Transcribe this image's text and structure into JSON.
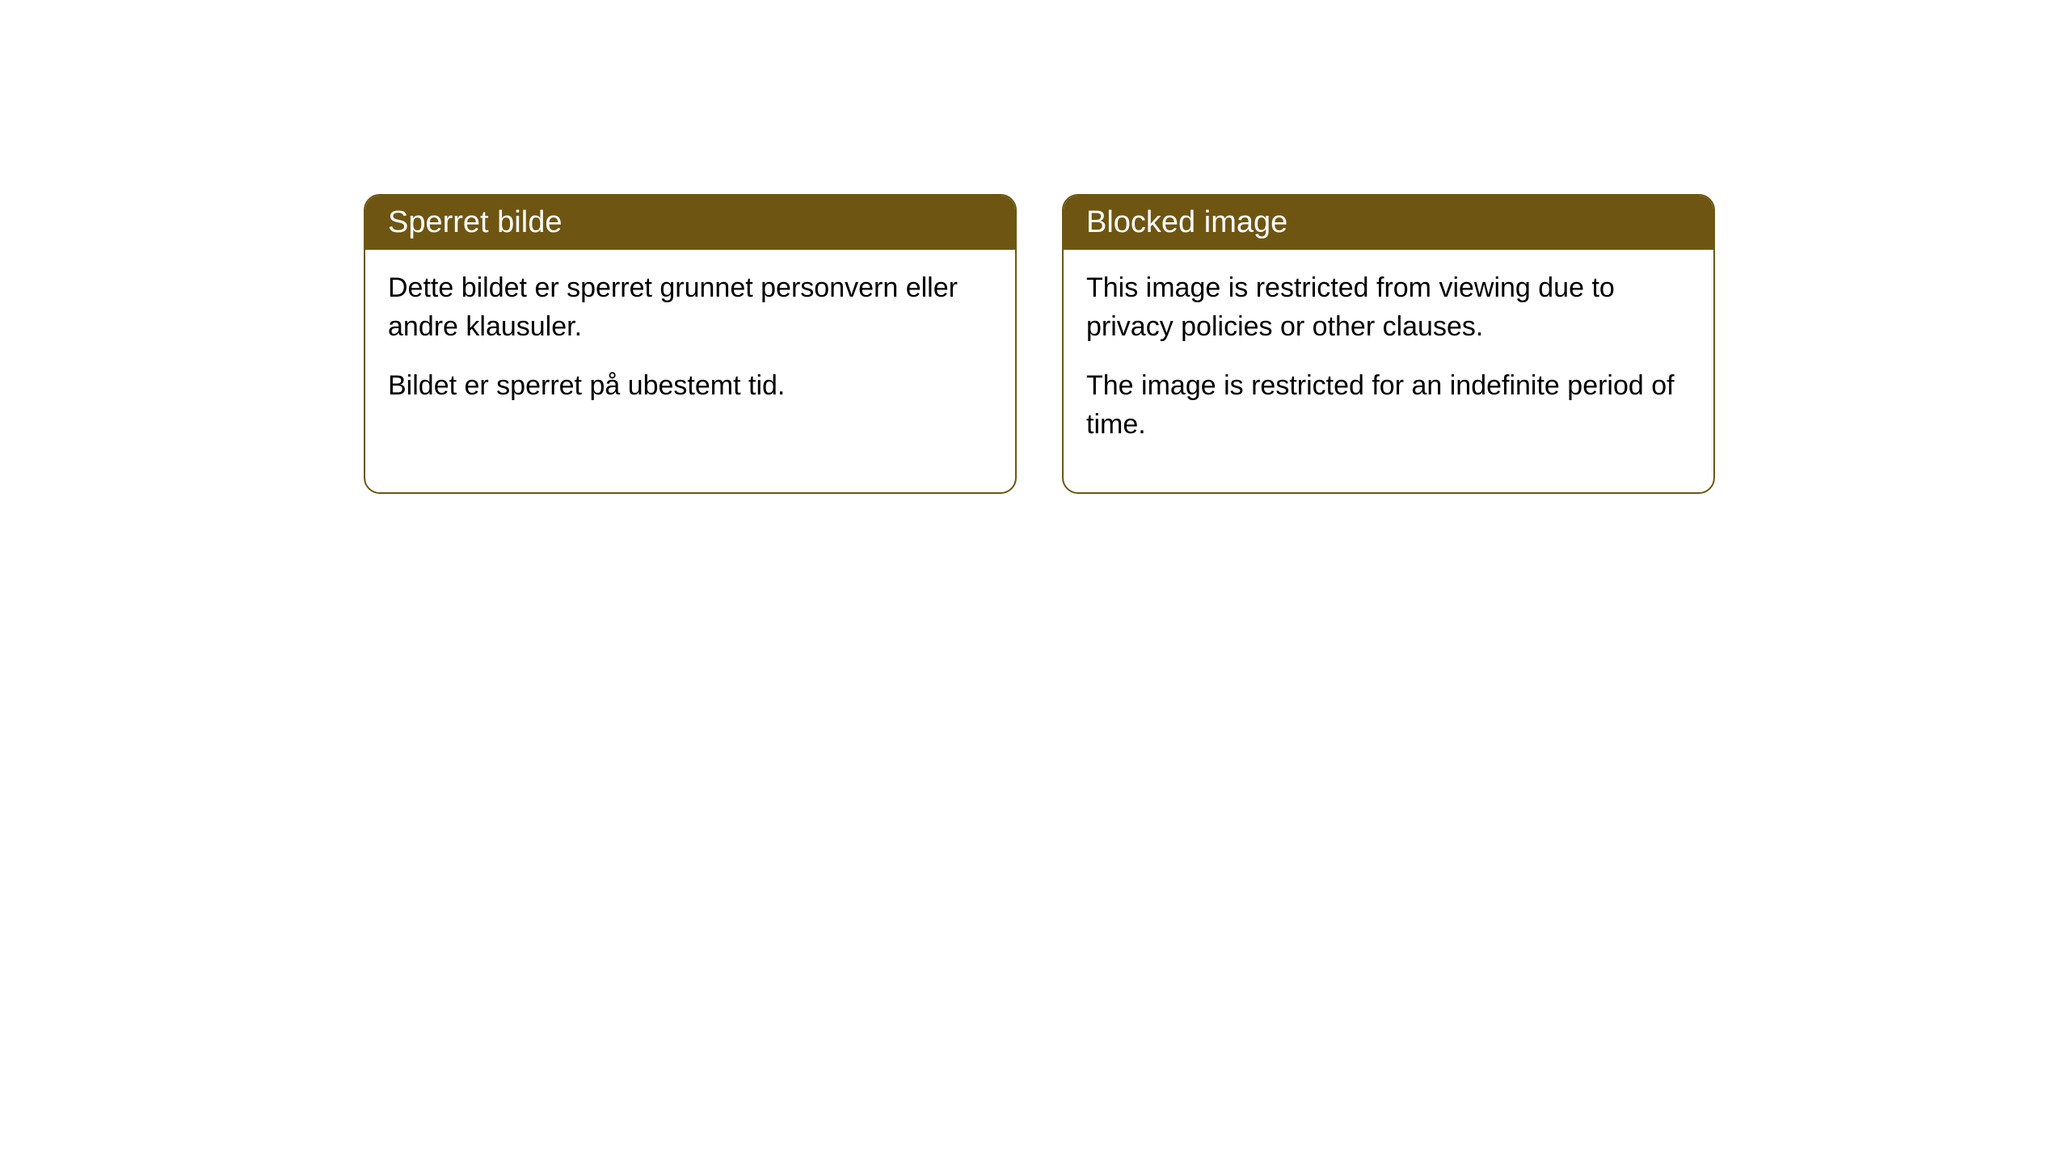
{
  "cards": [
    {
      "title": "Sperret bilde",
      "paragraph1": "Dette bildet er sperret grunnet personvern eller andre klausuler.",
      "paragraph2": "Bildet er sperret på ubestemt tid."
    },
    {
      "title": "Blocked image",
      "paragraph1": "This image is restricted from viewing due to privacy policies or other clauses.",
      "paragraph2": "The image is restricted for an indefinite period of time."
    }
  ],
  "style": {
    "header_background_color": "#6e5512",
    "header_text_color": "#ffffff",
    "border_color": "#6e5512",
    "body_text_color": "#000000",
    "card_background_color": "#ffffff",
    "page_background_color": "#ffffff",
    "border_radius": 20,
    "header_fontsize": 38,
    "body_fontsize": 34
  }
}
